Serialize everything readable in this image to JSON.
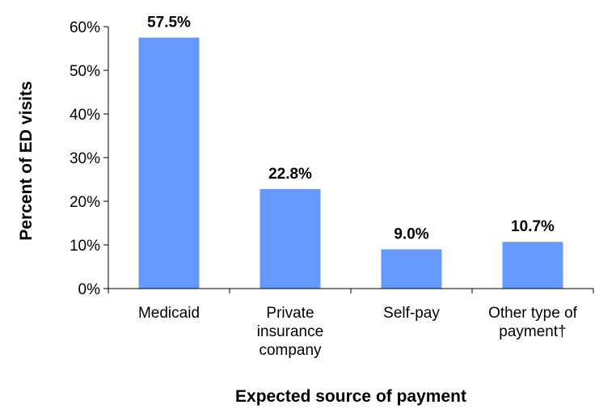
{
  "chart_data": {
    "type": "bar",
    "title": "",
    "xlabel": "Expected source of payment",
    "ylabel": "Percent of ED visits",
    "categories": [
      [
        "Medicaid"
      ],
      [
        "Private",
        "insurance",
        "company"
      ],
      [
        "Self-pay"
      ],
      [
        "Other type of",
        "payment†"
      ]
    ],
    "values": [
      57.5,
      22.8,
      9.0,
      10.7
    ],
    "data_labels": [
      "57.5%",
      "22.8%",
      "9.0%",
      "10.7%"
    ],
    "ylim": [
      0,
      60
    ],
    "yticks": [
      0,
      10,
      20,
      30,
      40,
      50,
      60
    ],
    "ytick_labels": [
      "0%",
      "10%",
      "20%",
      "30%",
      "40%",
      "50%",
      "60%"
    ],
    "grid": false,
    "legend": "none",
    "colors": {
      "bar": "#6699FF",
      "axis": "#000000"
    }
  }
}
